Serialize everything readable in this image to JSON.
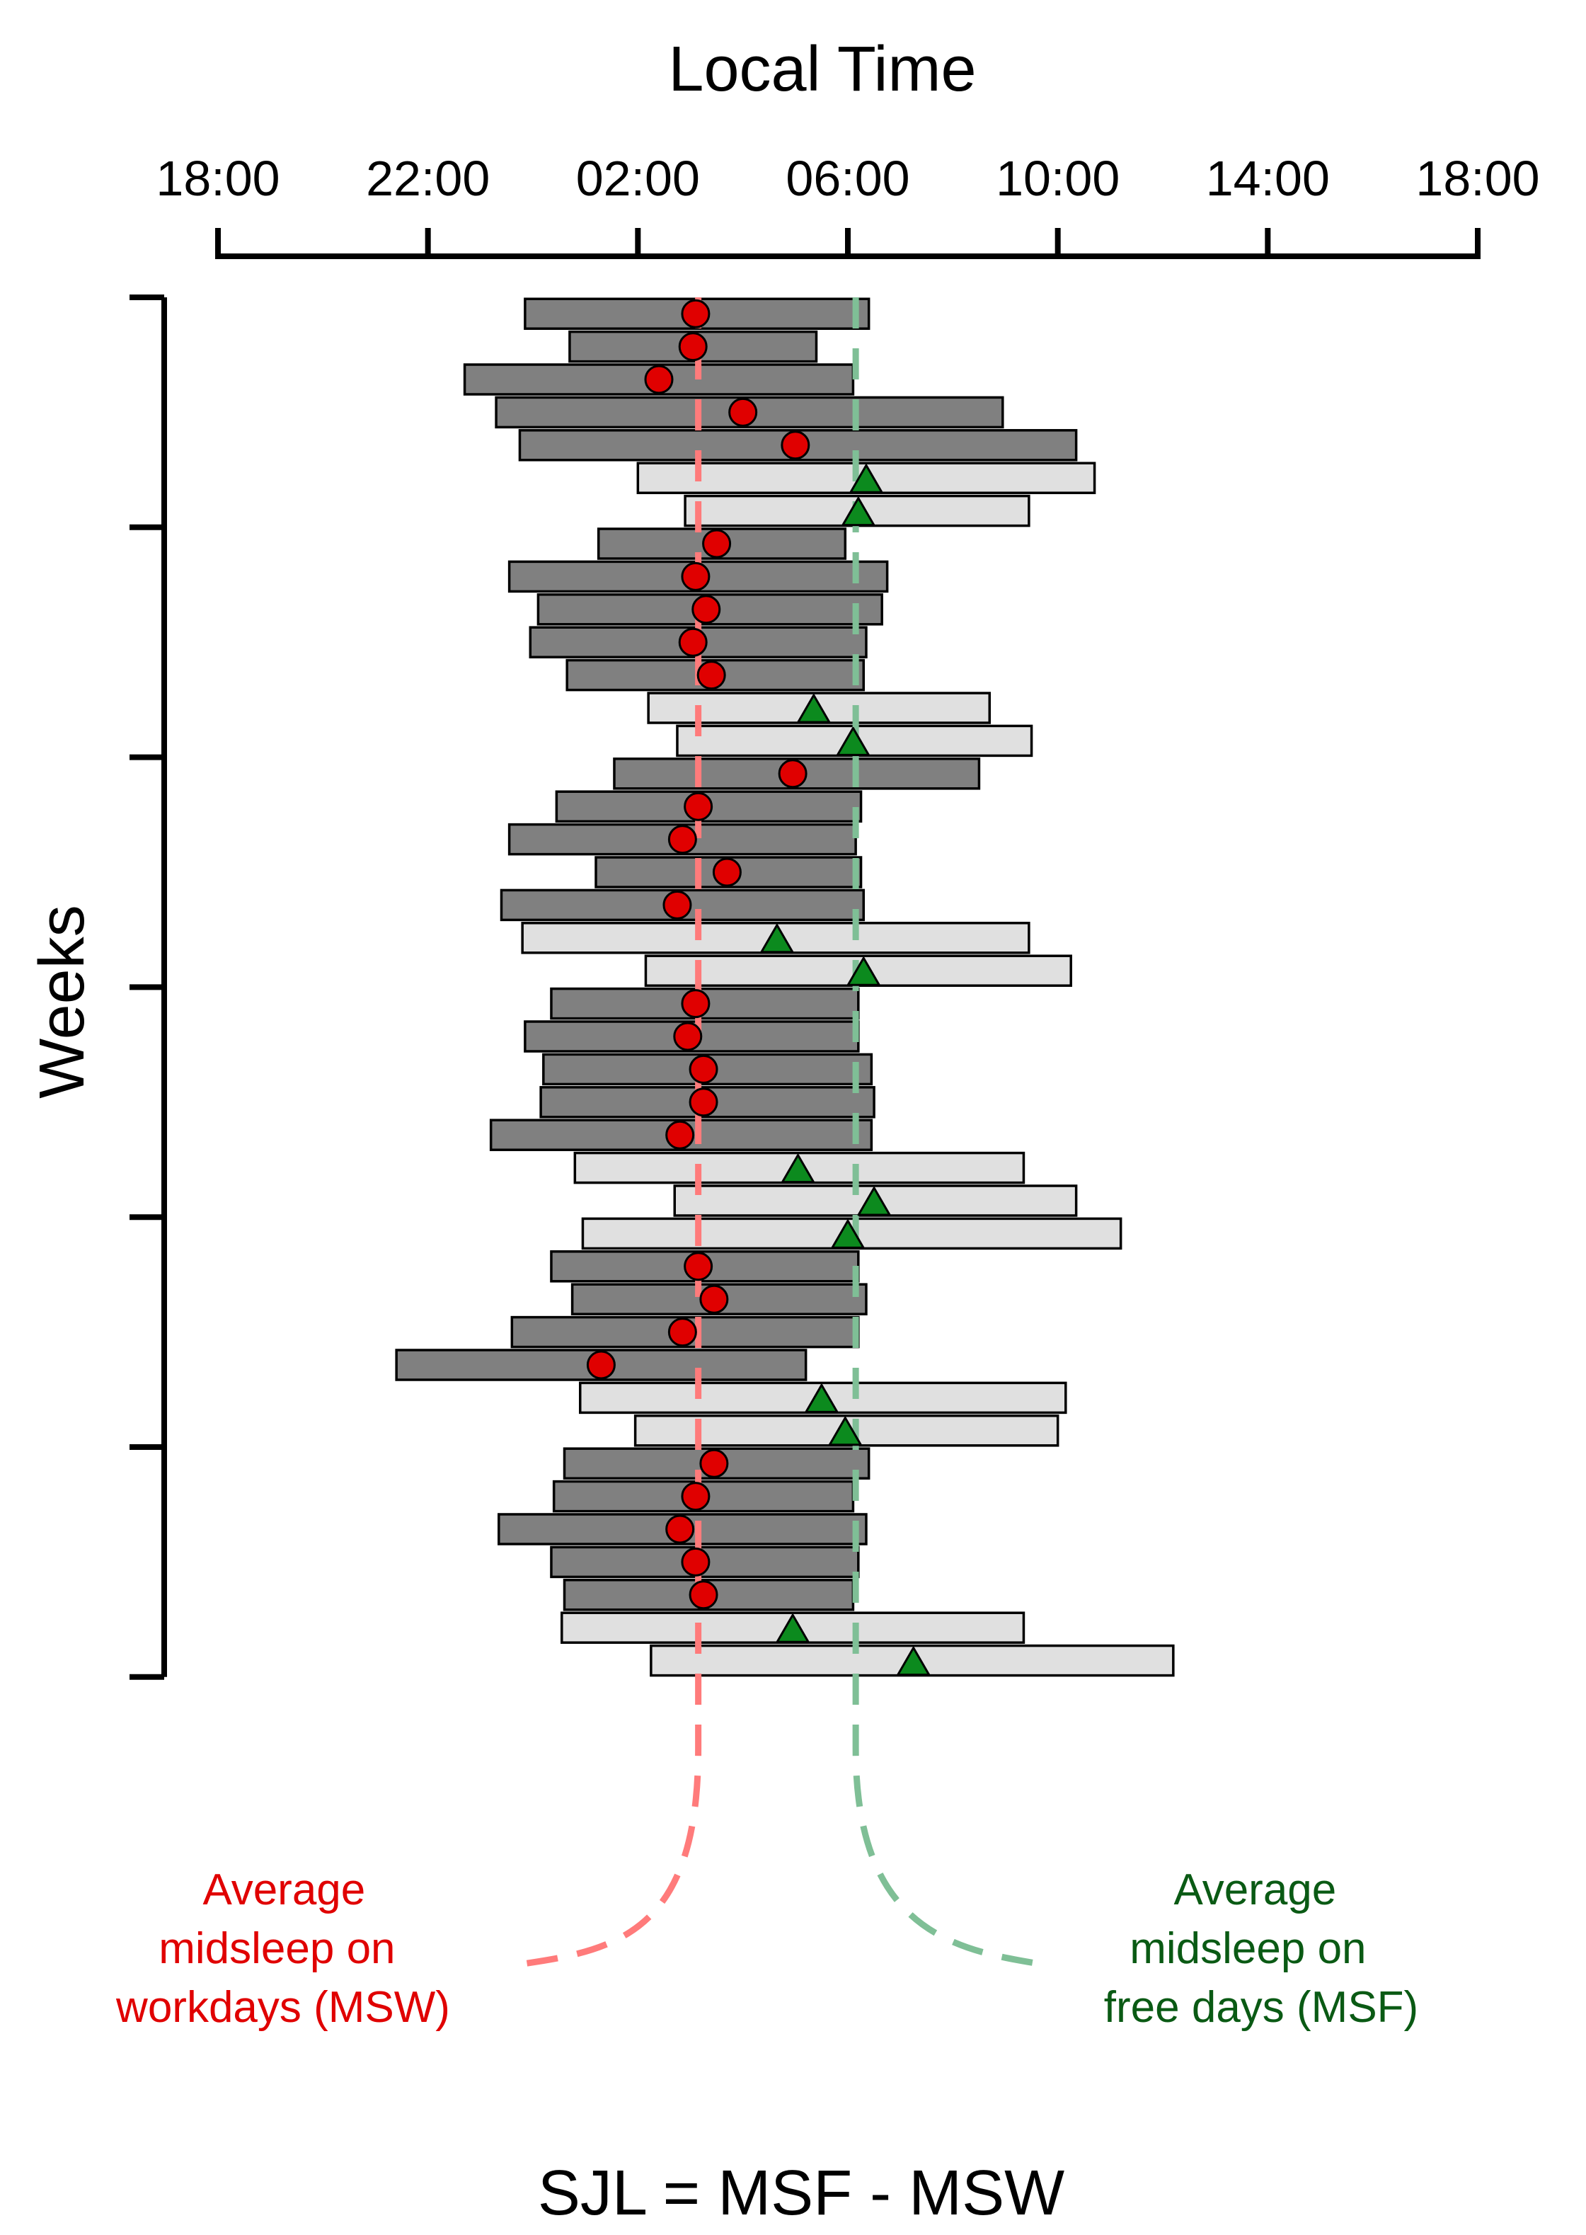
{
  "chart_data": {
    "type": "bar",
    "subtype": "horizontal-floating-sleep-episodes",
    "title": "",
    "xlabel": "Local Time",
    "ylabel": "Weeks",
    "x_axis_position": "top",
    "x_units": "hours since 18:00",
    "xlim": [
      0,
      24
    ],
    "x_ticks": [
      {
        "label": "18:00",
        "value": 0
      },
      {
        "label": "22:00",
        "value": 4
      },
      {
        "label": "02:00",
        "value": 8
      },
      {
        "label": "06:00",
        "value": 12
      },
      {
        "label": "10:00",
        "value": 16
      },
      {
        "label": "14:00",
        "value": 20
      },
      {
        "label": "18:00",
        "value": 24
      }
    ],
    "y_units": "day index",
    "y_ticks_days": [
      0,
      7,
      14,
      21,
      28,
      35,
      42
    ],
    "grid": false,
    "legend": "none",
    "categories": [
      "workday",
      "free day"
    ],
    "colors": {
      "workday": "#808080",
      "free_day": "#e0e0e0",
      "bar_outline": "#000000",
      "msw_marker": "#e00000",
      "msf_marker": "#0c8a1e",
      "msw_line": "#ff7b7b",
      "msf_line": "#7fbf96",
      "msw_text": "#e00000",
      "msf_text": "#0a5a14"
    },
    "days": [
      {
        "type": "workday",
        "onset": 5.85,
        "offset": 12.4,
        "midsleep": 9.1
      },
      {
        "type": "workday",
        "onset": 6.7,
        "offset": 11.4,
        "midsleep": 9.05
      },
      {
        "type": "workday",
        "onset": 4.7,
        "offset": 12.1,
        "midsleep": 8.4
      },
      {
        "type": "workday",
        "onset": 5.3,
        "offset": 14.95,
        "midsleep": 10.0
      },
      {
        "type": "workday",
        "onset": 5.75,
        "offset": 16.35,
        "midsleep": 11.0
      },
      {
        "type": "free day",
        "onset": 8.0,
        "offset": 16.7,
        "midsleep": 12.35
      },
      {
        "type": "free day",
        "onset": 8.9,
        "offset": 15.45,
        "midsleep": 12.2
      },
      {
        "type": "workday",
        "onset": 7.25,
        "offset": 11.95,
        "midsleep": 9.5
      },
      {
        "type": "workday",
        "onset": 5.55,
        "offset": 12.75,
        "midsleep": 9.1
      },
      {
        "type": "workday",
        "onset": 6.1,
        "offset": 12.65,
        "midsleep": 9.3
      },
      {
        "type": "workday",
        "onset": 5.95,
        "offset": 12.35,
        "midsleep": 9.05
      },
      {
        "type": "workday",
        "onset": 6.65,
        "offset": 12.3,
        "midsleep": 9.4
      },
      {
        "type": "free day",
        "onset": 8.2,
        "offset": 14.7,
        "midsleep": 11.35
      },
      {
        "type": "free day",
        "onset": 8.75,
        "offset": 15.5,
        "midsleep": 12.1
      },
      {
        "type": "workday",
        "onset": 7.55,
        "offset": 14.5,
        "midsleep": 10.95
      },
      {
        "type": "workday",
        "onset": 6.45,
        "offset": 12.25,
        "midsleep": 9.15
      },
      {
        "type": "workday",
        "onset": 5.55,
        "offset": 12.15,
        "midsleep": 8.85
      },
      {
        "type": "workday",
        "onset": 7.2,
        "offset": 12.25,
        "midsleep": 9.7
      },
      {
        "type": "workday",
        "onset": 5.4,
        "offset": 12.3,
        "midsleep": 8.75
      },
      {
        "type": "free day",
        "onset": 5.8,
        "offset": 15.45,
        "midsleep": 10.65
      },
      {
        "type": "free day",
        "onset": 8.15,
        "offset": 16.25,
        "midsleep": 12.3
      },
      {
        "type": "workday",
        "onset": 6.35,
        "offset": 12.2,
        "midsleep": 9.1
      },
      {
        "type": "workday",
        "onset": 5.85,
        "offset": 12.2,
        "midsleep": 8.95
      },
      {
        "type": "workday",
        "onset": 6.2,
        "offset": 12.45,
        "midsleep": 9.25
      },
      {
        "type": "workday",
        "onset": 6.15,
        "offset": 12.5,
        "midsleep": 9.25
      },
      {
        "type": "workday",
        "onset": 5.2,
        "offset": 12.45,
        "midsleep": 8.8
      },
      {
        "type": "free day",
        "onset": 6.8,
        "offset": 15.35,
        "midsleep": 11.05
      },
      {
        "type": "free day",
        "onset": 8.7,
        "offset": 16.35,
        "midsleep": 12.5
      },
      {
        "type": "free day",
        "onset": 6.95,
        "offset": 17.2,
        "midsleep": 12.0
      },
      {
        "type": "workday",
        "onset": 6.35,
        "offset": 12.2,
        "midsleep": 9.15
      },
      {
        "type": "workday",
        "onset": 6.75,
        "offset": 12.35,
        "midsleep": 9.45
      },
      {
        "type": "workday",
        "onset": 5.6,
        "offset": 12.2,
        "midsleep": 8.85
      },
      {
        "type": "workday",
        "onset": 3.4,
        "offset": 11.2,
        "midsleep": 7.3
      },
      {
        "type": "free day",
        "onset": 6.9,
        "offset": 16.15,
        "midsleep": 11.5
      },
      {
        "type": "free day",
        "onset": 7.95,
        "offset": 16.0,
        "midsleep": 11.95
      },
      {
        "type": "workday",
        "onset": 6.6,
        "offset": 12.4,
        "midsleep": 9.45
      },
      {
        "type": "workday",
        "onset": 6.4,
        "offset": 12.1,
        "midsleep": 9.1
      },
      {
        "type": "workday",
        "onset": 5.35,
        "offset": 12.35,
        "midsleep": 8.8
      },
      {
        "type": "workday",
        "onset": 6.35,
        "offset": 12.2,
        "midsleep": 9.1
      },
      {
        "type": "workday",
        "onset": 6.6,
        "offset": 12.1,
        "midsleep": 9.25
      },
      {
        "type": "free day",
        "onset": 6.55,
        "offset": 15.35,
        "midsleep": 10.95
      },
      {
        "type": "free day",
        "onset": 8.25,
        "offset": 18.2,
        "midsleep": 13.25
      }
    ],
    "reference_lines": {
      "msw": {
        "x": 9.15,
        "label": "Average midsleep on workdays (MSW)"
      },
      "msf": {
        "x": 12.15,
        "label": "Average midsleep on free days (MSF)"
      }
    },
    "annotations": {
      "msw_lines": [
        "Average",
        "midsleep on",
        "workdays (MSW)"
      ],
      "msf_lines": [
        "Average",
        "midsleep on",
        "free days (MSF)"
      ],
      "equation": "SJL = MSF - MSW"
    }
  }
}
